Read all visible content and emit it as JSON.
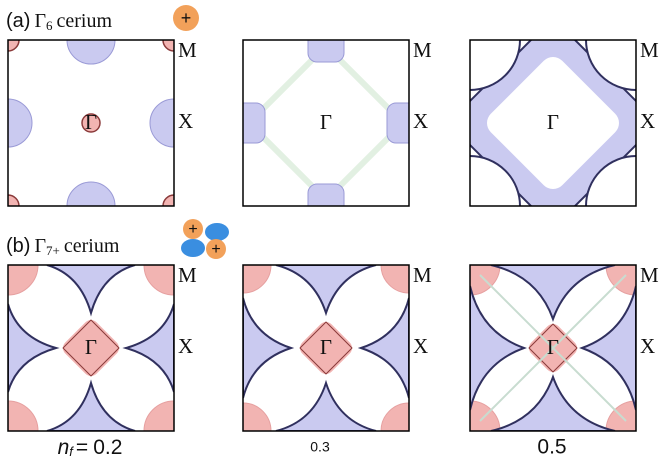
{
  "rows": [
    {
      "label": "(a)",
      "symbol": "Γ",
      "subscript": "6",
      "name": "cerium",
      "icon_signs": [
        "+"
      ],
      "panels": [
        {
          "center": "Γ",
          "edge": "X",
          "corner": "M"
        },
        {
          "center": "Γ",
          "edge": "X",
          "corner": "M"
        },
        {
          "center": "Γ",
          "edge": "X",
          "corner": "M"
        }
      ]
    },
    {
      "label": "(b)",
      "symbol": "Γ",
      "subscript": "7+",
      "name": "cerium",
      "icon_signs": [
        "+",
        "+"
      ],
      "panels": [
        {
          "center": "Γ",
          "edge": "X",
          "corner": "M"
        },
        {
          "center": "Γ",
          "edge": "X",
          "corner": "M"
        },
        {
          "center": "Γ",
          "edge": "X",
          "corner": "M"
        }
      ]
    }
  ],
  "footer": {
    "variable": "n",
    "subscript": "f",
    "equals": "=",
    "values": [
      "0.2",
      "0.3",
      "0.5"
    ]
  }
}
